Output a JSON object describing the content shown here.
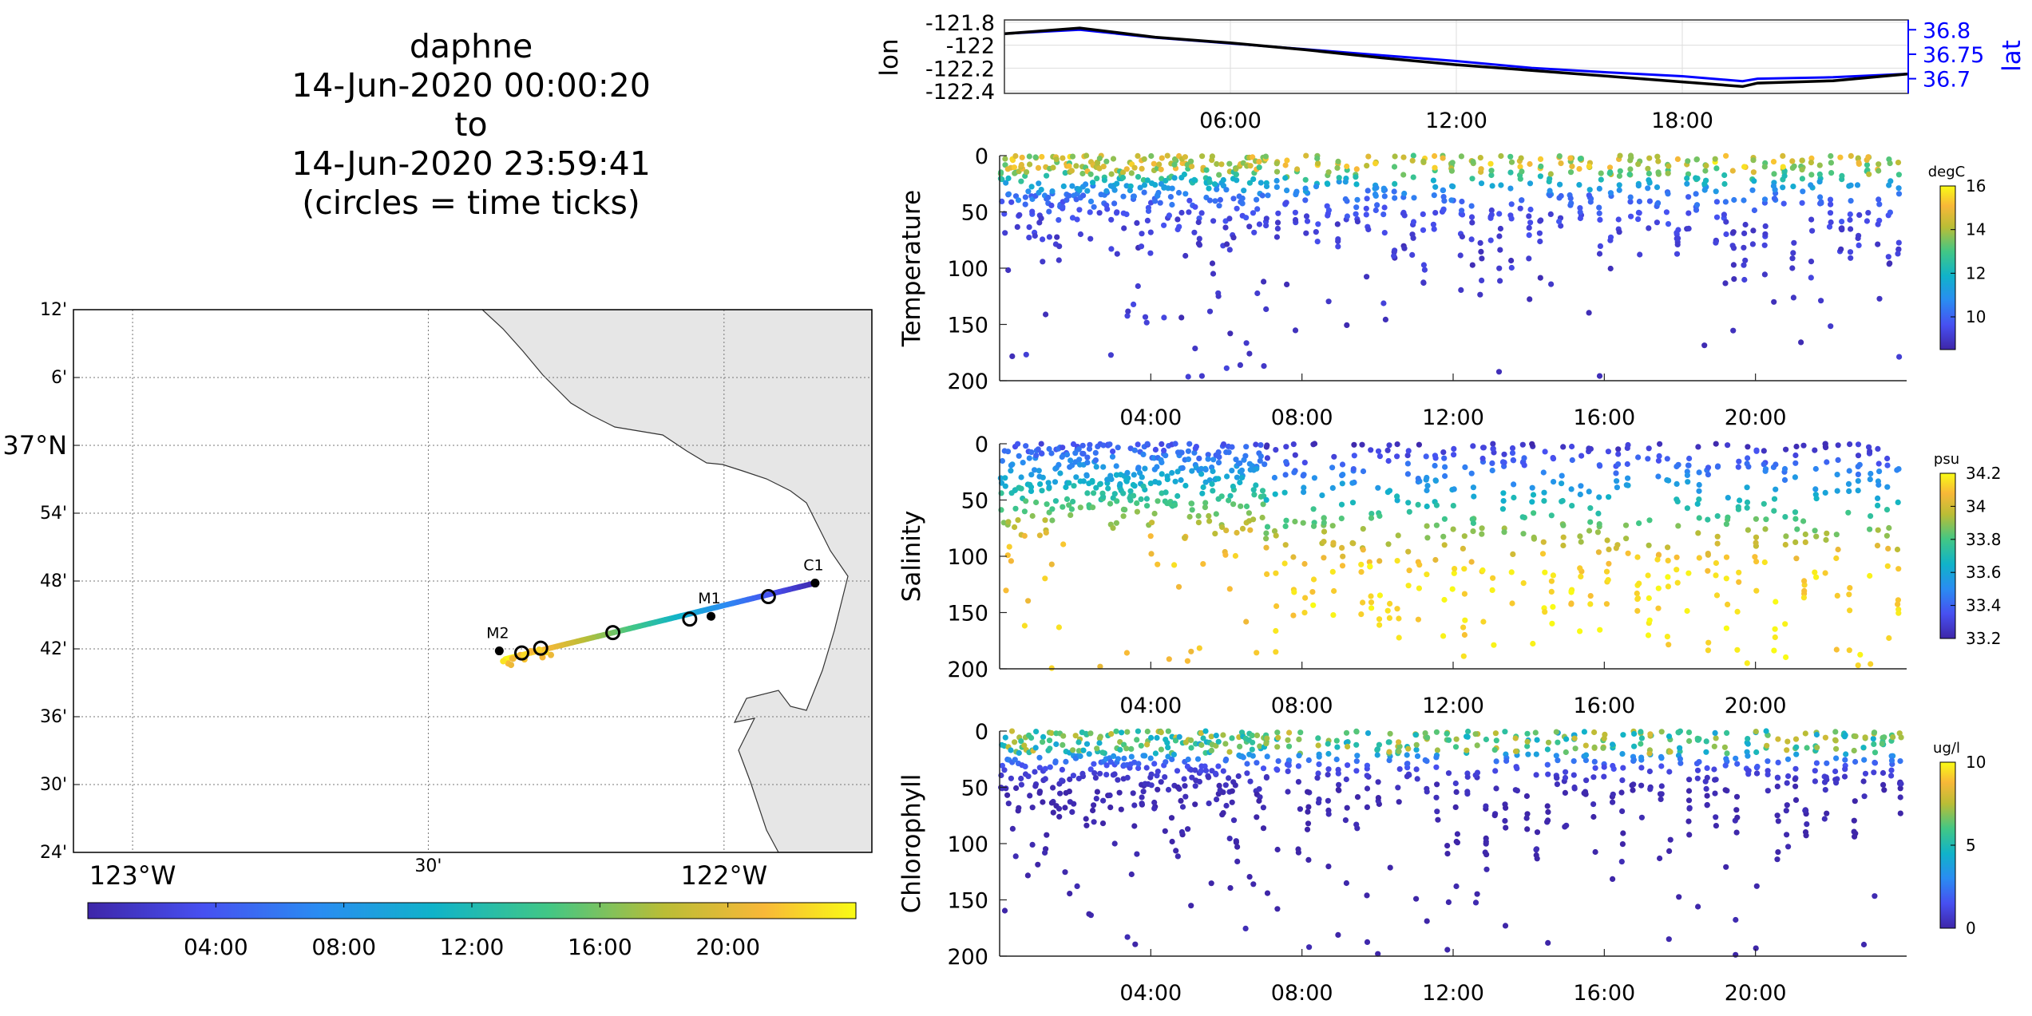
{
  "header": {
    "lines": [
      "daphne",
      "14-Jun-2020 00:00:20",
      "to",
      "14-Jun-2020 23:59:41",
      "(circles = time ticks)"
    ]
  },
  "colors": {
    "track_start": "#3e26a8",
    "track_end": "#f9fb15",
    "land": "#e6e6e6",
    "lon_line": "#000000",
    "lat_line": "#0000ff"
  },
  "chart_data": [
    {
      "type": "line",
      "name": "map",
      "lat_ticks": [
        "12'",
        "6'",
        "37°N",
        "54'",
        "48'",
        "42'",
        "36'",
        "30'",
        "24'"
      ],
      "lon_ticks": [
        "123°W",
        "30'",
        "122°W"
      ],
      "xlim": [
        -123.1,
        -121.75
      ],
      "ylim": [
        36.4,
        37.2
      ],
      "stations": [
        {
          "name": "C1",
          "lon": -121.846,
          "lat": 36.797
        },
        {
          "name": "M1",
          "lon": -122.022,
          "lat": 36.748
        },
        {
          "name": "M2",
          "lon": -122.38,
          "lat": 36.697
        }
      ],
      "track": {
        "start": [
          -121.846,
          36.797
        ],
        "end": [
          -122.37,
          36.685
        ]
      },
      "time_circles": [
        {
          "lon": -121.925,
          "lat": 36.777
        },
        {
          "lon": -122.058,
          "lat": 36.744
        },
        {
          "lon": -122.188,
          "lat": 36.724
        },
        {
          "lon": -122.31,
          "lat": 36.701
        },
        {
          "lon": -122.342,
          "lat": 36.694
        }
      ],
      "colorbar_ticks": [
        "04:00",
        "08:00",
        "12:00",
        "16:00",
        "20:00"
      ]
    },
    {
      "type": "line",
      "name": "lon-lat",
      "ylabel_left": "lon",
      "ylabel_right": "lat",
      "left_ticks": [
        "-121.8",
        "-122",
        "-122.2",
        "-122.4"
      ],
      "right_ticks": [
        "36.8",
        "36.75",
        "36.7"
      ],
      "x_ticks": [
        "06:00",
        "12:00",
        "18:00"
      ],
      "ylim_left": [
        -122.42,
        -121.78
      ],
      "ylim_right": [
        36.67,
        36.82
      ],
      "lon_series": {
        "x": [
          0,
          2,
          4,
          6,
          8,
          10,
          12,
          14,
          16,
          18,
          19.6,
          20,
          22,
          24
        ],
        "y": [
          -121.9,
          -121.85,
          -121.93,
          -121.98,
          -122.04,
          -122.11,
          -122.17,
          -122.22,
          -122.27,
          -122.32,
          -122.36,
          -122.33,
          -122.31,
          -122.25
        ]
      },
      "lat_series": {
        "x": [
          0,
          2,
          4,
          6,
          8,
          10,
          12,
          14,
          16,
          18,
          19.6,
          20,
          22,
          24
        ],
        "y": [
          36.792,
          36.8,
          36.784,
          36.772,
          36.76,
          36.748,
          36.736,
          36.722,
          36.713,
          36.705,
          36.695,
          36.7,
          36.703,
          36.71
        ]
      }
    },
    {
      "type": "scatter",
      "name": "temperature",
      "ylabel": "Temperature",
      "unit": "degC",
      "y_ticks": [
        "0",
        "50",
        "100",
        "150",
        "200"
      ],
      "x_ticks": [
        "04:00",
        "08:00",
        "12:00",
        "16:00",
        "20:00"
      ],
      "xlim": [
        0,
        24
      ],
      "ylim": [
        0,
        200
      ],
      "clim": [
        8.5,
        16
      ],
      "cbar_ticks": [
        "10",
        "12",
        "14",
        "16"
      ],
      "profile": {
        "surface": 14.5,
        "mixed_depth": 20,
        "deep": 9.0,
        "decay": 30
      }
    },
    {
      "type": "scatter",
      "name": "salinity",
      "ylabel": "Salinity",
      "unit": "psu",
      "y_ticks": [
        "0",
        "50",
        "100",
        "150",
        "200"
      ],
      "x_ticks": [
        "04:00",
        "08:00",
        "12:00",
        "16:00",
        "20:00"
      ],
      "xlim": [
        0,
        24
      ],
      "ylim": [
        0,
        200
      ],
      "clim": [
        33.2,
        34.2
      ],
      "cbar_ticks": [
        "33.2",
        "33.4",
        "33.6",
        "33.8",
        "34",
        "34.2"
      ],
      "profile": {
        "surface": 33.35,
        "deep": 34.05
      }
    },
    {
      "type": "scatter",
      "name": "chlorophyll",
      "ylabel": "Chlorophyll",
      "unit": "ug/l",
      "y_ticks": [
        "0",
        "50",
        "100",
        "150",
        "200"
      ],
      "x_ticks": [
        "04:00",
        "08:00",
        "12:00",
        "16:00",
        "20:00"
      ],
      "xlim": [
        0,
        24
      ],
      "ylim": [
        0,
        200
      ],
      "clim": [
        0,
        10
      ],
      "cbar_ticks": [
        "0",
        "5",
        "10"
      ],
      "profile": {
        "surface": 5.5,
        "deep": 0.2
      }
    }
  ]
}
